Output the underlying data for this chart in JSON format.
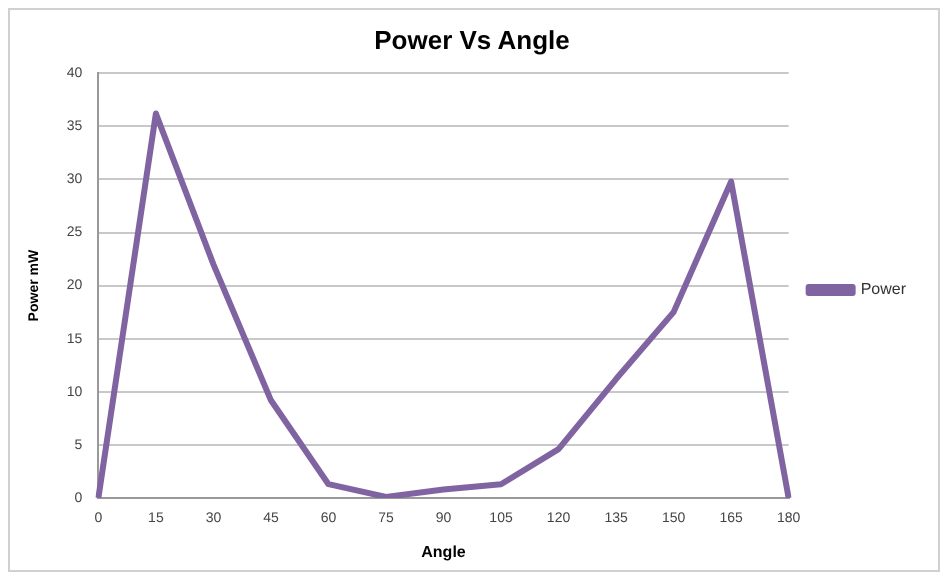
{
  "chart_data": {
    "type": "line",
    "title": "Power Vs Angle",
    "xlabel": "Angle",
    "ylabel": "Power mW",
    "categories": [
      "0",
      "15",
      "30",
      "45",
      "60",
      "75",
      "90",
      "105",
      "120",
      "135",
      "150",
      "165",
      "180"
    ],
    "series": [
      {
        "name": "Power",
        "color": "#8064a2",
        "values": [
          0,
          36.2,
          22,
          9.2,
          1.3,
          0.1,
          0.8,
          1.3,
          4.6,
          11.2,
          17.5,
          29.8,
          0
        ]
      }
    ],
    "ylim": [
      0,
      40
    ],
    "yticks": [
      0,
      5,
      10,
      15,
      20,
      25,
      30,
      35,
      40
    ],
    "grid": "y",
    "legend": "right",
    "marker": "none",
    "line_style": "solid"
  }
}
